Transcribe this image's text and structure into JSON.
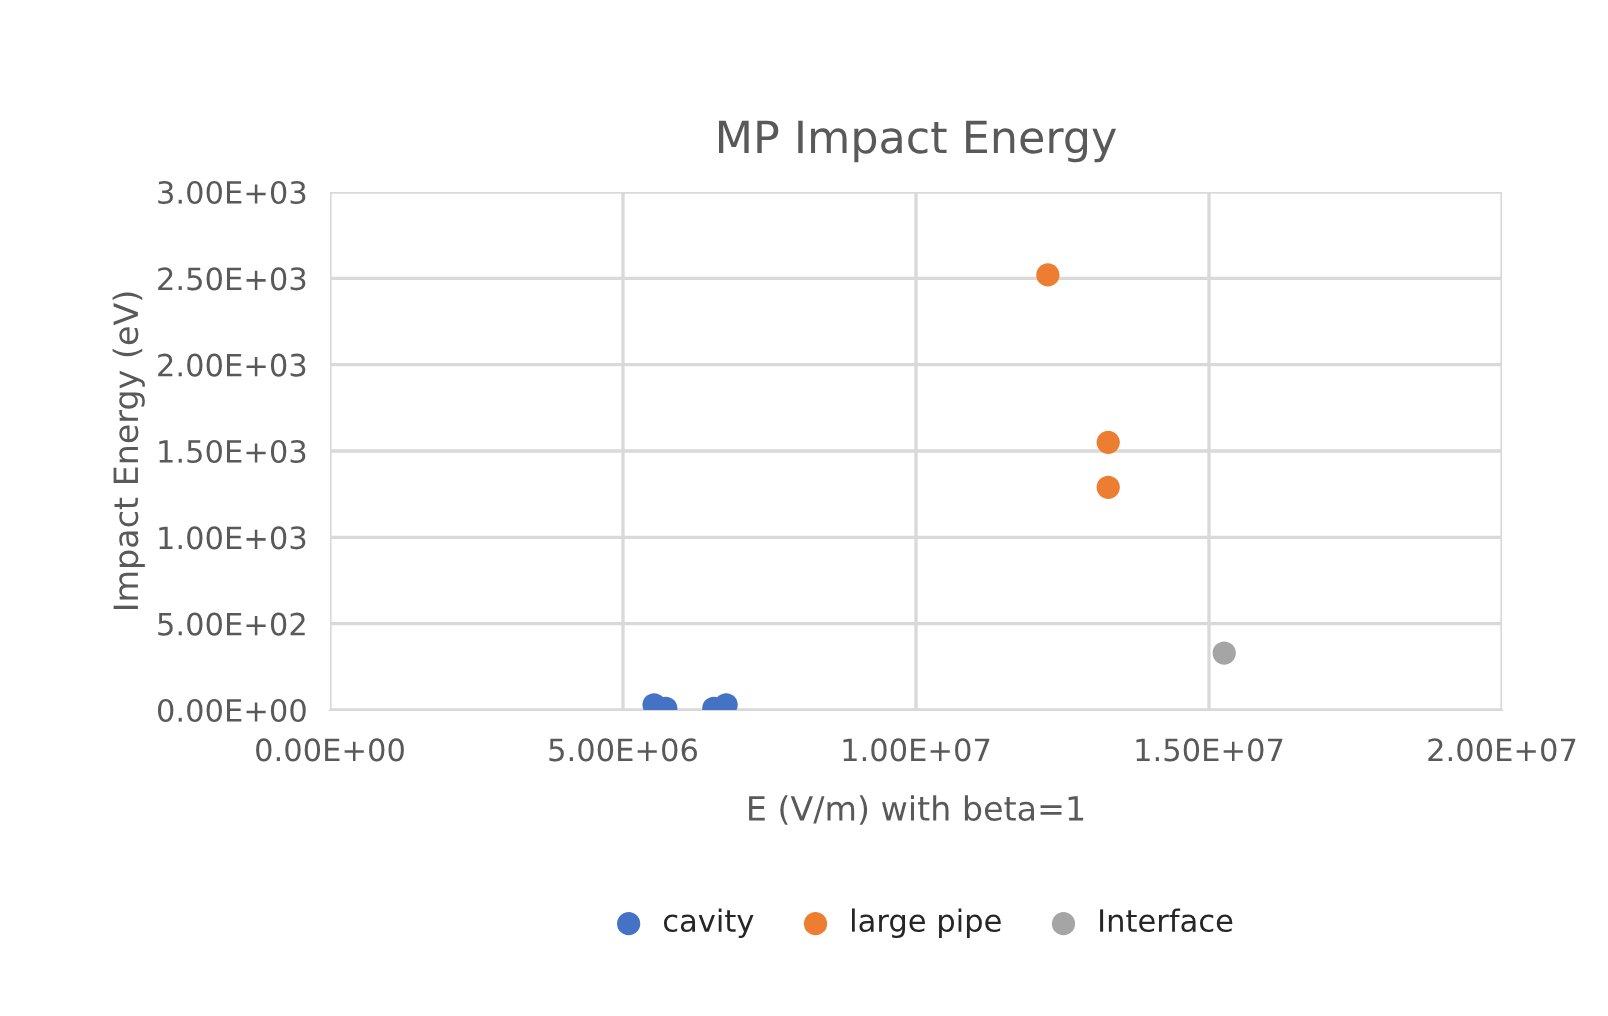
{
  "chart_data": {
    "type": "scatter",
    "title": "MP Impact Energy",
    "xlabel": "E (V/m) with beta=1",
    "ylabel": "Impact Energy (eV)",
    "series": [
      {
        "name": "cavity",
        "color": "#4472c4",
        "x": [
          5530000,
          5730000,
          6550000,
          6760000
        ],
        "values": [
          30,
          10,
          10,
          30
        ]
      },
      {
        "name": "large pipe",
        "color": "#ed7d31",
        "x": [
          12250000,
          13280000,
          13280000
        ],
        "values": [
          2520,
          1550,
          1290
        ]
      },
      {
        "name": "Interface",
        "color": "#a5a5a5",
        "x": [
          15260000
        ],
        "values": [
          330
        ]
      }
    ],
    "xlim": [
      0,
      20000000
    ],
    "ylim": [
      0,
      3000
    ],
    "xticks": [
      {
        "value": 0,
        "label": "0.00E+00"
      },
      {
        "value": 5000000,
        "label": "5.00E+06"
      },
      {
        "value": 10000000,
        "label": "1.00E+07"
      },
      {
        "value": 15000000,
        "label": "1.50E+07"
      },
      {
        "value": 20000000,
        "label": "2.00E+07"
      }
    ],
    "yticks": [
      {
        "value": 0,
        "label": "0.00E+00"
      },
      {
        "value": 500,
        "label": "5.00E+02"
      },
      {
        "value": 1000,
        "label": "1.00E+03"
      },
      {
        "value": 1500,
        "label": "1.50E+03"
      },
      {
        "value": 2000,
        "label": "2.00E+03"
      },
      {
        "value": 2500,
        "label": "2.50E+03"
      },
      {
        "value": 3000,
        "label": "3.00E+03"
      }
    ],
    "grid": true,
    "legend": "bottom",
    "marker": "circle"
  }
}
